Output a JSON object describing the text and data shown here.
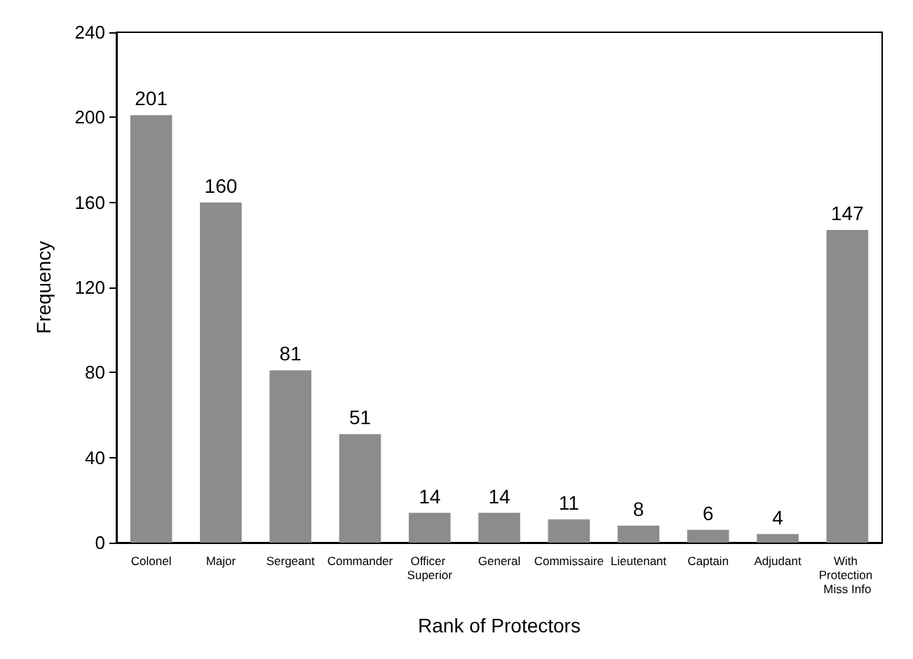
{
  "chart_data": {
    "type": "bar",
    "xlabel": "Rank of Protectors",
    "ylabel": "Frequency",
    "categories": [
      "Colonel",
      "Major",
      "Sergeant",
      "Commander",
      "Officer Superior",
      "General",
      "Commissaire",
      "Lieutenant",
      "Captain",
      "Adjudant",
      "With Protection Miss Info"
    ],
    "values": [
      201,
      160,
      81,
      51,
      14,
      14,
      11,
      8,
      6,
      4,
      147
    ],
    "color": "#8c8c8c",
    "ylim": [
      0,
      240
    ],
    "yticks": [
      0,
      40,
      80,
      120,
      160,
      200,
      240
    ],
    "grid": false,
    "data_labels": true
  }
}
